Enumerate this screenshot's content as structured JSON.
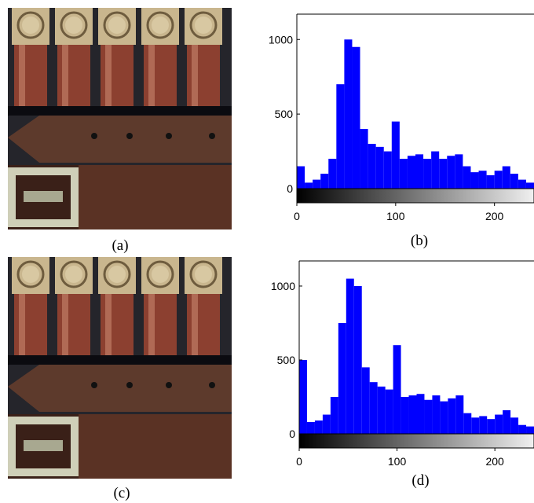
{
  "images": [
    {
      "caption": "(a)"
    },
    {
      "caption": "(c)"
    }
  ],
  "chart_data": [
    {
      "type": "histogram",
      "caption": "(b)",
      "color": "#0000ff",
      "bins": [
        0,
        8,
        16,
        24,
        32,
        40,
        48,
        56,
        64,
        72,
        80,
        88,
        96,
        104,
        112,
        120,
        128,
        136,
        144,
        152,
        160,
        168,
        176,
        184,
        192,
        200,
        208,
        216,
        224,
        232,
        240
      ],
      "values": [
        150,
        40,
        60,
        100,
        200,
        700,
        1000,
        950,
        400,
        300,
        280,
        250,
        450,
        200,
        220,
        230,
        200,
        250,
        200,
        220,
        230,
        150,
        110,
        120,
        90,
        120,
        150,
        100,
        60,
        40
      ],
      "xlim": [
        0,
        240
      ],
      "ylim": [
        0,
        1170
      ],
      "xticks": [
        0,
        100,
        200
      ],
      "yticks": [
        0,
        500,
        1000
      ],
      "colorbar": true
    },
    {
      "type": "histogram",
      "caption": "(d)",
      "color": "#0000ff",
      "bins": [
        0,
        8,
        16,
        24,
        32,
        40,
        48,
        56,
        64,
        72,
        80,
        88,
        96,
        104,
        112,
        120,
        128,
        136,
        144,
        152,
        160,
        168,
        176,
        184,
        192,
        200,
        208,
        216,
        224,
        232,
        240
      ],
      "values": [
        500,
        80,
        90,
        130,
        250,
        750,
        1050,
        1000,
        450,
        350,
        320,
        300,
        600,
        250,
        260,
        270,
        230,
        260,
        220,
        240,
        260,
        140,
        110,
        120,
        100,
        130,
        160,
        110,
        60,
        50
      ],
      "xlim": [
        0,
        240
      ],
      "ylim": [
        0,
        1170
      ],
      "xticks": [
        0,
        100,
        200
      ],
      "yticks": [
        0,
        500,
        1000
      ],
      "colorbar": true
    }
  ]
}
